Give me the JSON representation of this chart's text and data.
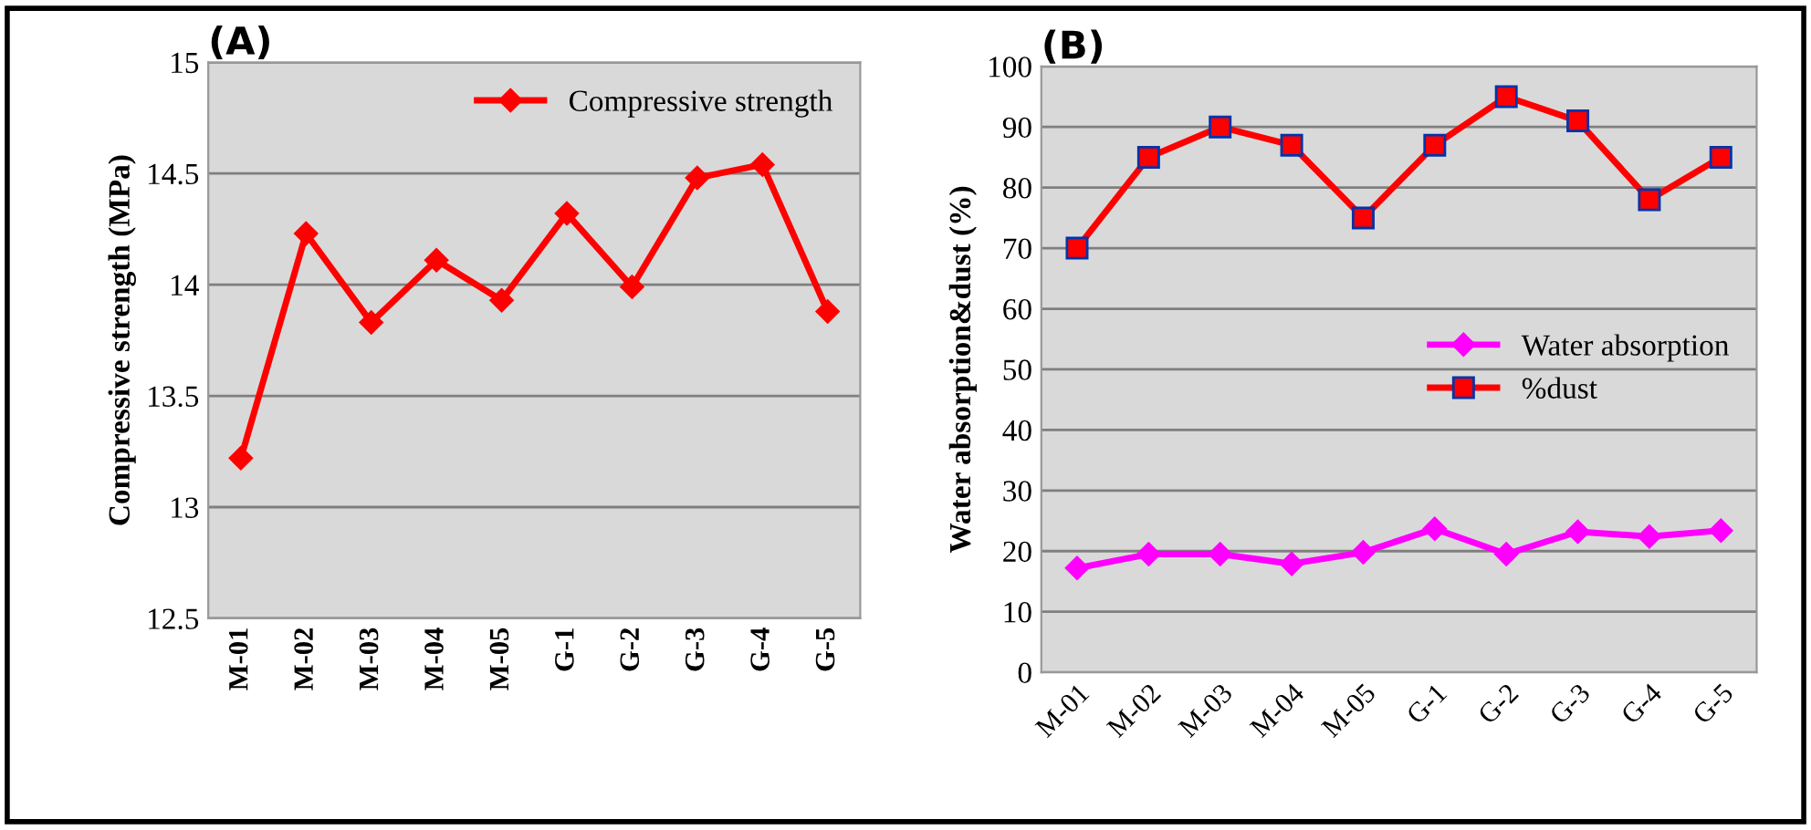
{
  "chart_data": [
    {
      "type": "line",
      "title": "(A)",
      "ylabel": "Compressive strength (MPa)",
      "categories": [
        "M-01",
        "M-02",
        "M-03",
        "M-04",
        "M-05",
        "G-1",
        "G-2",
        "G-3",
        "G-4",
        "G-5"
      ],
      "series": [
        {
          "name": "Compressive strength",
          "color": "#ff0000",
          "values": [
            13.22,
            14.23,
            13.83,
            14.11,
            13.93,
            14.32,
            13.99,
            14.48,
            14.54,
            13.88
          ]
        }
      ],
      "ylim": [
        12.5,
        15
      ],
      "yticks": [
        12.5,
        13,
        13.5,
        14,
        14.5,
        15
      ],
      "grid": "y",
      "legend": "top right",
      "marker": "diamond",
      "line_style": "solid"
    },
    {
      "type": "line",
      "title": "(B)",
      "ylabel": "Water absorption&dust (%)",
      "categories": [
        "M-01",
        "M-02",
        "M-03",
        "M-04",
        "M-05",
        "G-1",
        "G-2",
        "G-3",
        "G-4",
        "G-5"
      ],
      "series": [
        {
          "name": "Water absorption",
          "color": "#ff00ff",
          "marker": "diamond",
          "values": [
            17.2,
            19.5,
            19.5,
            17.9,
            19.8,
            23.7,
            19.5,
            23.2,
            22.4,
            23.4
          ]
        },
        {
          "name": "%dust",
          "color": "#ff0000",
          "marker": "square",
          "values": [
            70,
            85,
            90,
            87,
            75,
            87,
            95,
            91,
            78,
            85
          ]
        }
      ],
      "ylim": [
        0,
        100
      ],
      "yticks": [
        0,
        10,
        20,
        30,
        40,
        50,
        60,
        70,
        80,
        90,
        100
      ],
      "grid": "y",
      "legend": "center right",
      "line_style": "solid"
    }
  ]
}
